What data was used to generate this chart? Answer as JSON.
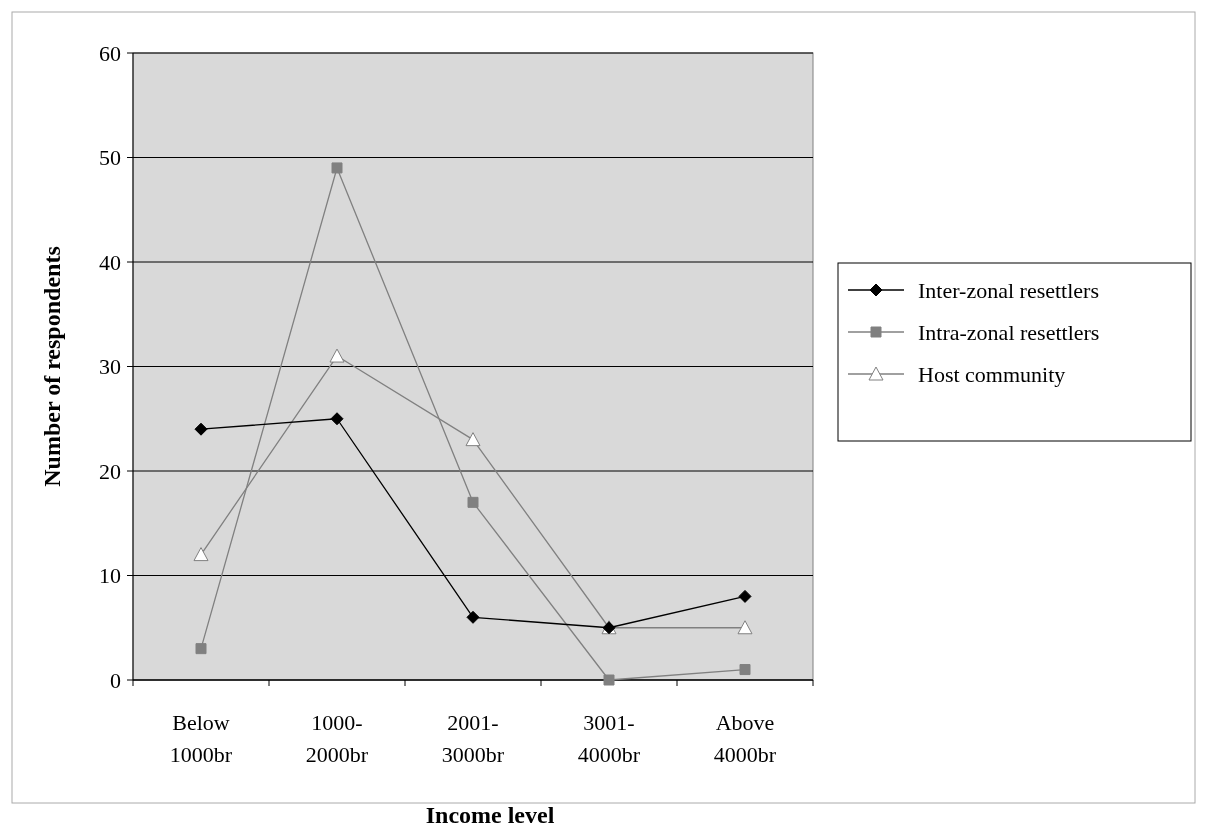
{
  "chart_data": {
    "type": "line",
    "xlabel": "Income level",
    "ylabel": "Number of respondents",
    "categories": [
      "Below 1000br",
      "1000-2000br",
      "2001-3000br",
      "3001-4000br",
      "Above 4000br"
    ],
    "series": [
      {
        "name": "Inter-zonal resettlers",
        "color": "#000000",
        "marker": "diamond",
        "values": [
          24,
          25,
          6,
          5,
          8
        ]
      },
      {
        "name": "Intra-zonal resettlers",
        "color": "#808080",
        "marker": "square",
        "values": [
          3,
          49,
          17,
          0,
          1
        ]
      },
      {
        "name": "Host community",
        "color": "#808080",
        "marker": "triangle",
        "values": [
          12,
          31,
          23,
          5,
          5
        ]
      }
    ],
    "ylim": [
      0,
      60
    ],
    "yticks": [
      0,
      10,
      20,
      30,
      40,
      50,
      60
    ],
    "grid": "y",
    "legend": "right"
  }
}
